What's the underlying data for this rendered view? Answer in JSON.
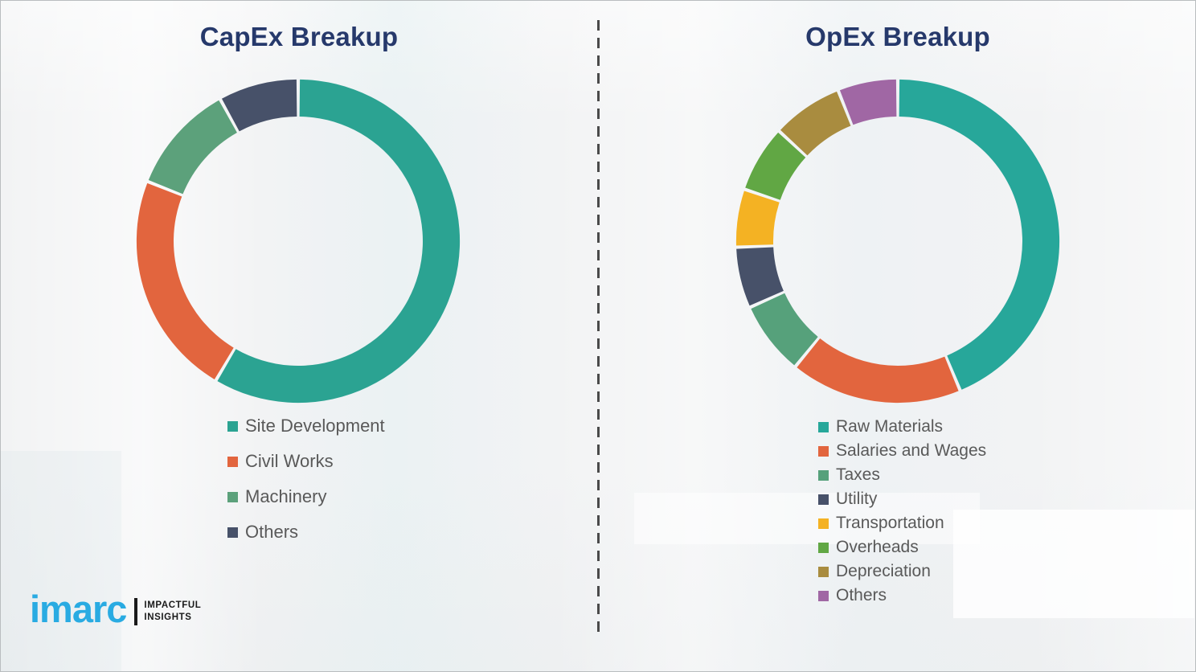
{
  "branding": {
    "brand": "imarc",
    "tagline_line1": "IMPACTFUL",
    "tagline_line2": "INSIGHTS",
    "brand_color": "#29ABE2",
    "title_color": "#26396B",
    "legend_text_color": "#595959"
  },
  "chart_data": [
    {
      "type": "pie",
      "subtype": "donut",
      "title": "CapEx Breakup",
      "labels": [
        "Site Development",
        "Civil Works",
        "Machinery",
        "Others"
      ],
      "values": [
        58.5,
        22.5,
        11,
        8
      ],
      "colors": [
        "#2BA392",
        "#E2653E",
        "#5CA17B",
        "#475169"
      ],
      "legend_position": "below-left",
      "hole_ratio": 0.77,
      "start_angle_deg": 0,
      "direction": "clockwise"
    },
    {
      "type": "pie",
      "subtype": "donut",
      "title": "OpEx Breakup",
      "labels": [
        "Raw Materials",
        "Salaries and Wages",
        "Taxes",
        "Utility",
        "Transportation",
        "Overheads",
        "Depreciation",
        "Others"
      ],
      "values": [
        43.7,
        17.2,
        7.4,
        6.1,
        5.8,
        6.7,
        7.1,
        6.0
      ],
      "colors": [
        "#27A79A",
        "#E2653E",
        "#56A17B",
        "#475169",
        "#F4B223",
        "#61A744",
        "#A98C3F",
        "#A067A4"
      ],
      "legend_position": "below-left",
      "hole_ratio": 0.77,
      "start_angle_deg": 0,
      "direction": "clockwise"
    }
  ]
}
